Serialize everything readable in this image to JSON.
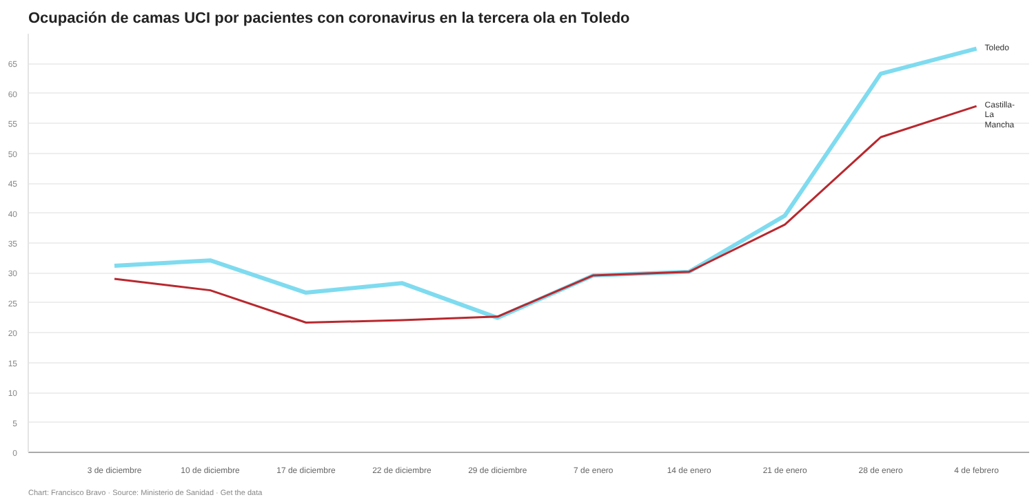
{
  "chart_data": {
    "type": "line",
    "title": "Ocupación de camas UCI por pacientes con coronavirus en la tercera ola en Toledo",
    "categories": [
      "3 de diciembre",
      "10 de diciembre",
      "17 de diciembre",
      "22 de diciembre",
      "29 de diciembre",
      "7 de enero",
      "14 de enero",
      "21 de enero",
      "28 de enero",
      "4 de febrero"
    ],
    "series": [
      {
        "name": "Toledo",
        "color": "#7fdbef",
        "values": [
          31.2,
          32.1,
          26.7,
          28.3,
          22.5,
          29.6,
          30.2,
          39.6,
          63.3,
          67.5
        ]
      },
      {
        "name": "Castilla-La Mancha",
        "color": "#b8282e",
        "values": [
          29.0,
          27.1,
          21.7,
          22.1,
          22.7,
          29.6,
          30.2,
          38.1,
          52.7,
          57.9
        ]
      }
    ],
    "ylim": [
      0,
      70
    ],
    "yticks": [
      0,
      5,
      10,
      15,
      20,
      25,
      30,
      35,
      40,
      45,
      50,
      55,
      60,
      65
    ],
    "grid": "y",
    "marker": "none",
    "line_style": "solid",
    "annotations": [
      "Chart: Francisco Bravo · Source: Ministerio de Sanidad · Get the data"
    ]
  }
}
